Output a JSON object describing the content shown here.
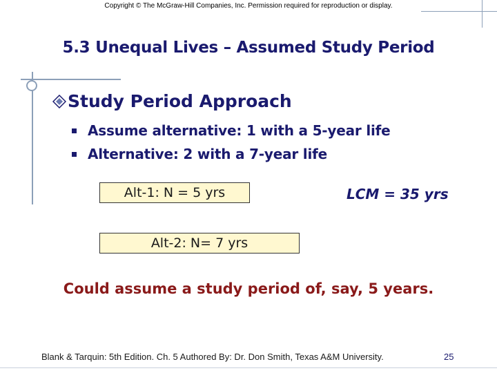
{
  "copyright": "Copyright © The McGraw-Hill Companies, Inc. Permission required for reproduction or display.",
  "title": "5.3 Unequal Lives – Assumed Study Period",
  "heading": "Study Period Approach",
  "bullets": [
    "Assume alternative: 1 with a 5-year life",
    "Alternative: 2 with a 7-year life"
  ],
  "alt1_box": "Alt-1: N = 5 yrs",
  "alt2_box": "Alt-2: N= 7 yrs",
  "lcm": "LCM = 35 yrs",
  "conclusion": "Could assume a study period of, say, 5 years.",
  "footer": "Blank & Tarquin: 5th Edition. Ch. 5 Authored By: Dr. Don Smith, Texas A&M University.",
  "page_number": "25",
  "colors": {
    "title": "#1a1a6e",
    "conclusion": "#8a1a1a",
    "box_fill": "#fff8d0"
  },
  "icons": {
    "heading_bullet": "diamond-icon",
    "list_bullet": "square-bullet-icon"
  }
}
